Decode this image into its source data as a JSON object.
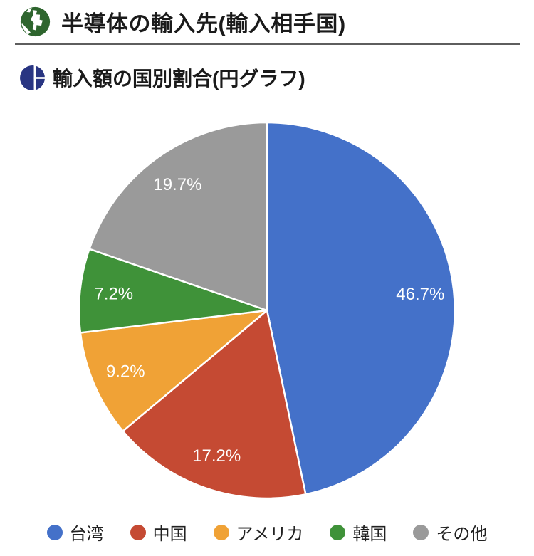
{
  "header": {
    "title": "半導体の輸入先(輸入相手国)",
    "icon": "globe-icon",
    "icon_color": "#2e652e",
    "underline_color": "#5e5e5e"
  },
  "section": {
    "title": "輸入額の国別割合(円グラフ)",
    "icon": "pie-chart-icon",
    "icon_color": "#293582"
  },
  "chart_data": {
    "type": "pie",
    "title": "輸入額の国別割合(円グラフ)",
    "start_angle_deg": 0,
    "direction": "clockwise",
    "categories": [
      "台湾",
      "中国",
      "アメリカ",
      "韓国",
      "その他"
    ],
    "values": [
      46.7,
      17.2,
      9.2,
      7.2,
      19.7
    ],
    "slices": [
      {
        "label": "台湾",
        "value": 46.7,
        "display": "46.7%",
        "color": "#4471c9"
      },
      {
        "label": "中国",
        "value": 17.2,
        "display": "17.2%",
        "color": "#c54a33"
      },
      {
        "label": "アメリカ",
        "value": 9.2,
        "display": "9.2%",
        "color": "#f0a236"
      },
      {
        "label": "韓国",
        "value": 7.2,
        "display": "7.2%",
        "color": "#3f9239"
      },
      {
        "label": "その他",
        "value": 19.7,
        "display": "19.7%",
        "color": "#9a9a9a"
      }
    ],
    "slice_border_color": "#ffffff",
    "label_color": "#ffffff",
    "label_font_size": 24,
    "legend_position": "bottom"
  }
}
